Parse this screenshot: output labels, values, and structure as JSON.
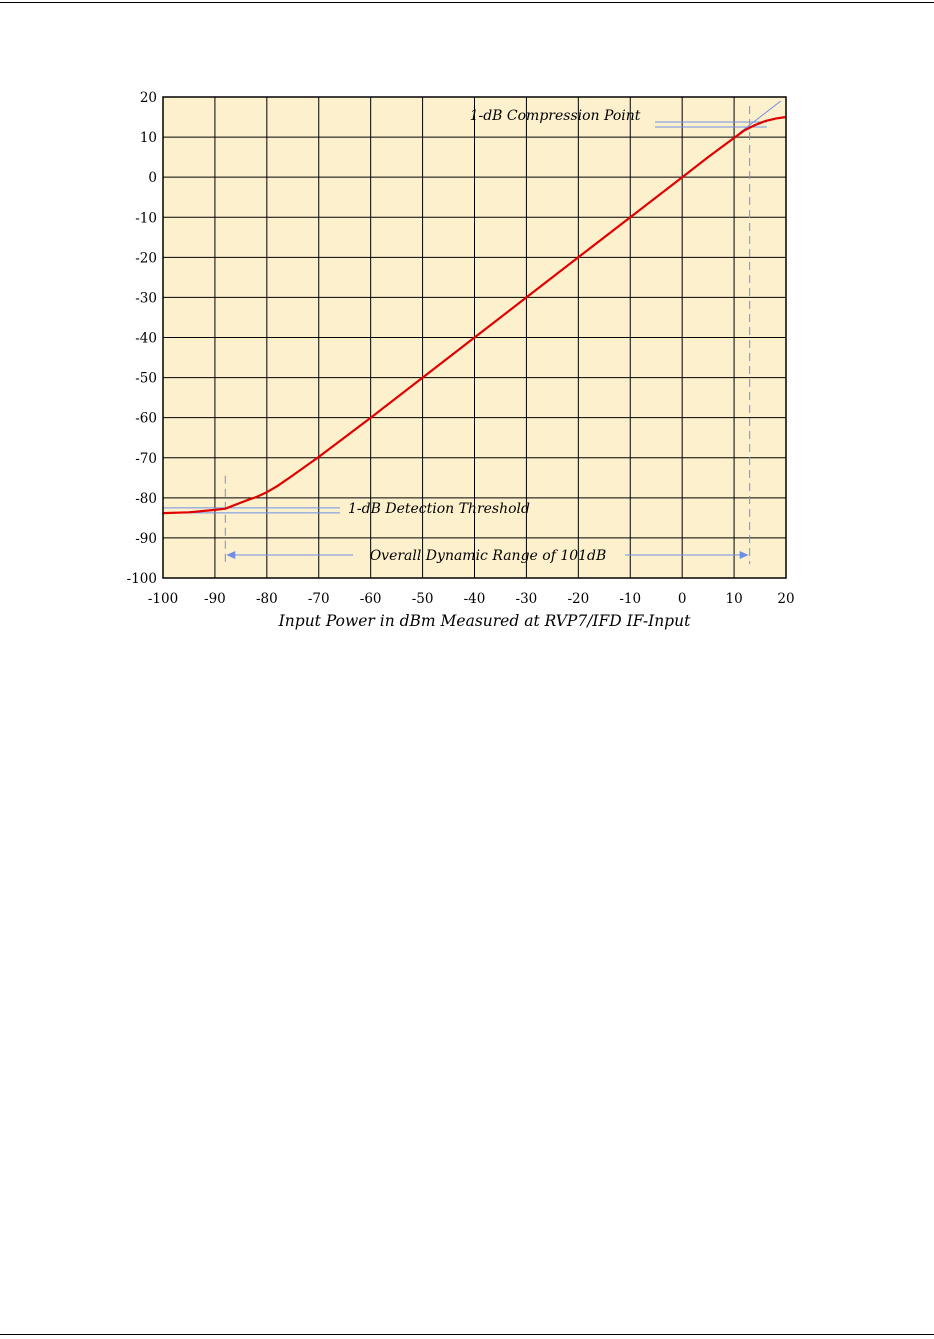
{
  "chart_data": {
    "type": "line",
    "xlabel": "Input Power in dBm Measured at RVP7/IFD IF-Input",
    "ylabel": "",
    "xlim": [
      -100,
      20
    ],
    "ylim": [
      -100,
      20
    ],
    "x_ticks": [
      "-100",
      "-90",
      "-80",
      "-70",
      "-60",
      "-50",
      "-40",
      "-30",
      "-20",
      "-10",
      "0",
      "10",
      "20"
    ],
    "y_ticks": [
      "20",
      "10",
      "0",
      "-10",
      "-20",
      "-30",
      "-40",
      "-50",
      "-60",
      "-70",
      "-80",
      "-90",
      "-100"
    ],
    "grid": true,
    "background_color": "#fdf0cc",
    "series": [
      {
        "color": "#e00000",
        "x": [
          -100,
          -95,
          -90,
          -88,
          -86,
          -84,
          -82,
          -80,
          -78,
          -75,
          -70,
          -60,
          -50,
          -40,
          -30,
          -20,
          -10,
          0,
          5,
          10,
          12,
          14,
          16,
          18,
          20
        ],
        "y": [
          -83.8,
          -83.6,
          -83.0,
          -82.7,
          -81.7,
          -80.7,
          -79.8,
          -78.6,
          -77.1,
          -74.4,
          -69.8,
          -60,
          -50,
          -40,
          -30,
          -20,
          -10,
          0,
          5,
          9.8,
          11.7,
          13.0,
          14.0,
          14.6,
          15.0
        ]
      }
    ],
    "annotations": {
      "compression_label": "1-dB Compression Point",
      "threshold_label": "1-dB Detection Threshold",
      "range_label": "Overall Dynamic Range of 101dB",
      "annotation_color": "#6f8fe6",
      "threshold_x": -88,
      "compression_x": 13,
      "compression_y": 13,
      "threshold_y": -83,
      "reference_line": {
        "x": [
          11,
          19
        ],
        "y": [
          11,
          19
        ]
      }
    }
  }
}
